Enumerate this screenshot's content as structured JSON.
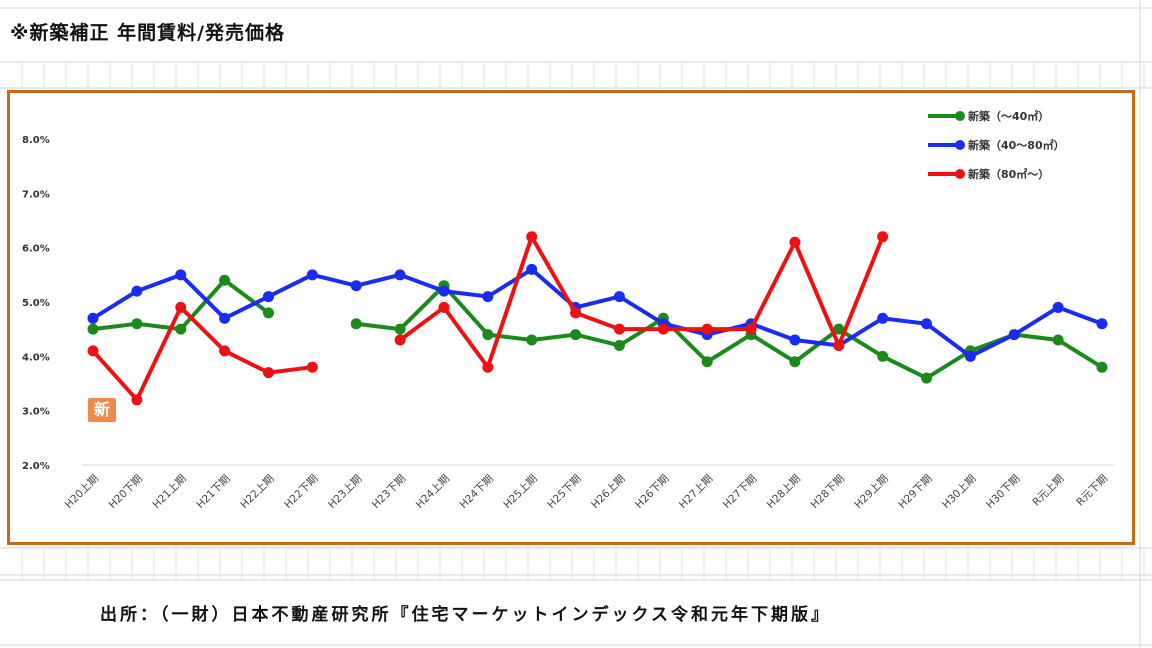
{
  "page": {
    "title": "※新築補正 年間賃料/発売価格",
    "source": "出所：（一財）日本不動産研究所『住宅マーケットインデックス令和元年下期版』",
    "icon_label": "新"
  },
  "colors": {
    "green": "#1a8a1a",
    "blue": "#1a2cf0",
    "red": "#ee1111",
    "frame": "#c86a1a"
  },
  "chart_data": {
    "type": "line",
    "categories": [
      "H20上期",
      "H20下期",
      "H21上期",
      "H21下期",
      "H22上期",
      "H22下期",
      "H23上期",
      "H23下期",
      "H24上期",
      "H24下期",
      "H25上期",
      "H25下期",
      "H26上期",
      "H26下期",
      "H27上期",
      "H27下期",
      "H28上期",
      "H28下期",
      "H29上期",
      "H29下期",
      "H30上期",
      "H30下期",
      "R元上期",
      "R元下期"
    ],
    "ylim": [
      2.0,
      8.0
    ],
    "yticks": [
      "2.0%",
      "3.0%",
      "4.0%",
      "5.0%",
      "6.0%",
      "7.0%",
      "8.0%"
    ],
    "legend_position": "top-right",
    "series": [
      {
        "name": "新築（～40㎡）",
        "color": "#1a8a1a",
        "values": [
          4.5,
          4.6,
          4.5,
          5.4,
          4.8,
          null,
          4.6,
          4.5,
          5.3,
          4.4,
          4.3,
          4.4,
          4.2,
          4.7,
          3.9,
          4.4,
          3.9,
          4.5,
          4.0,
          3.6,
          4.1,
          4.4,
          4.3,
          3.8
        ]
      },
      {
        "name": "新築（40～80㎡）",
        "color": "#1a2cf0",
        "values": [
          4.7,
          5.2,
          5.5,
          4.7,
          5.1,
          5.5,
          5.3,
          5.5,
          5.2,
          5.1,
          5.6,
          4.9,
          5.1,
          4.6,
          4.4,
          4.6,
          4.3,
          4.2,
          4.7,
          4.6,
          4.0,
          4.4,
          4.9,
          4.6
        ]
      },
      {
        "name": "新築（80㎡～）",
        "color": "#ee1111",
        "values": [
          4.1,
          3.2,
          4.9,
          4.1,
          3.7,
          3.8,
          null,
          4.3,
          4.9,
          3.8,
          6.2,
          4.8,
          4.5,
          4.5,
          4.5,
          4.5,
          6.1,
          4.2,
          6.2,
          null,
          null,
          null,
          null,
          null
        ]
      }
    ]
  }
}
